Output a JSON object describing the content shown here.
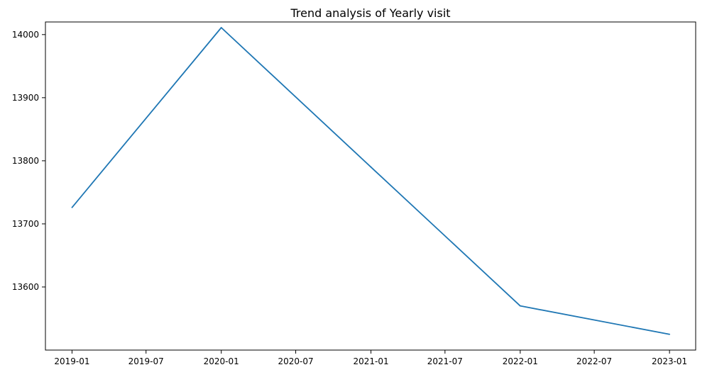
{
  "chart_data": {
    "type": "line",
    "title": "Trend analysis of Yearly visit",
    "xlabel": "",
    "ylabel": "",
    "x": [
      "2019-01-01",
      "2020-01-01",
      "2021-01-01",
      "2022-01-01",
      "2023-01-01"
    ],
    "series": [
      {
        "values": [
          13726,
          14011,
          13790,
          13570,
          13525
        ]
      }
    ],
    "x_ticks": [
      "2019-01",
      "2019-07",
      "2020-01",
      "2020-07",
      "2021-01",
      "2021-07",
      "2022-01",
      "2022-07",
      "2023-01"
    ],
    "y_ticks": [
      13600,
      13700,
      13800,
      13900,
      14000
    ],
    "xlim": [
      "2018-10-28",
      "2023-03-06"
    ],
    "ylim": [
      13500,
      14020
    ],
    "grid": false,
    "line_color": "#1f77b4"
  }
}
